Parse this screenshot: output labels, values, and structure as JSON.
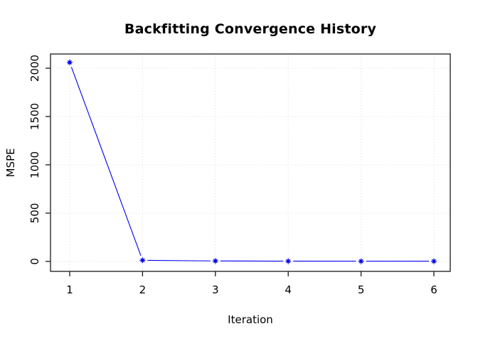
{
  "chart_data": {
    "type": "line",
    "title": "Backfitting Convergence History",
    "xlabel": "Iteration",
    "ylabel": "MSPE",
    "x": [
      1,
      2,
      3,
      4,
      5,
      6
    ],
    "series": [
      {
        "name": "MSPE",
        "values": [
          2060,
          12,
          5,
          3,
          2,
          2
        ]
      }
    ],
    "x_ticks": [
      "1",
      "2",
      "3",
      "4",
      "5",
      "6"
    ],
    "x_tick_values": [
      1,
      2,
      3,
      4,
      5,
      6
    ],
    "y_ticks": [
      "0",
      "500",
      "1000",
      "1500",
      "2000"
    ],
    "y_tick_values": [
      0,
      500,
      1000,
      1500,
      2000
    ],
    "xlim": [
      0.74,
      6.22
    ],
    "ylim": [
      -103,
      2147
    ],
    "grid": "dotted",
    "legend": "none",
    "marker": "asterisk-star",
    "line_style": "points-with-line-gaps",
    "colors": {
      "line": "#0000EE",
      "marker": "#0000EE",
      "grid": "#DCDCDC",
      "axis": "#1A1A1A",
      "text": "#000000",
      "background": "#FFFFFF"
    }
  }
}
